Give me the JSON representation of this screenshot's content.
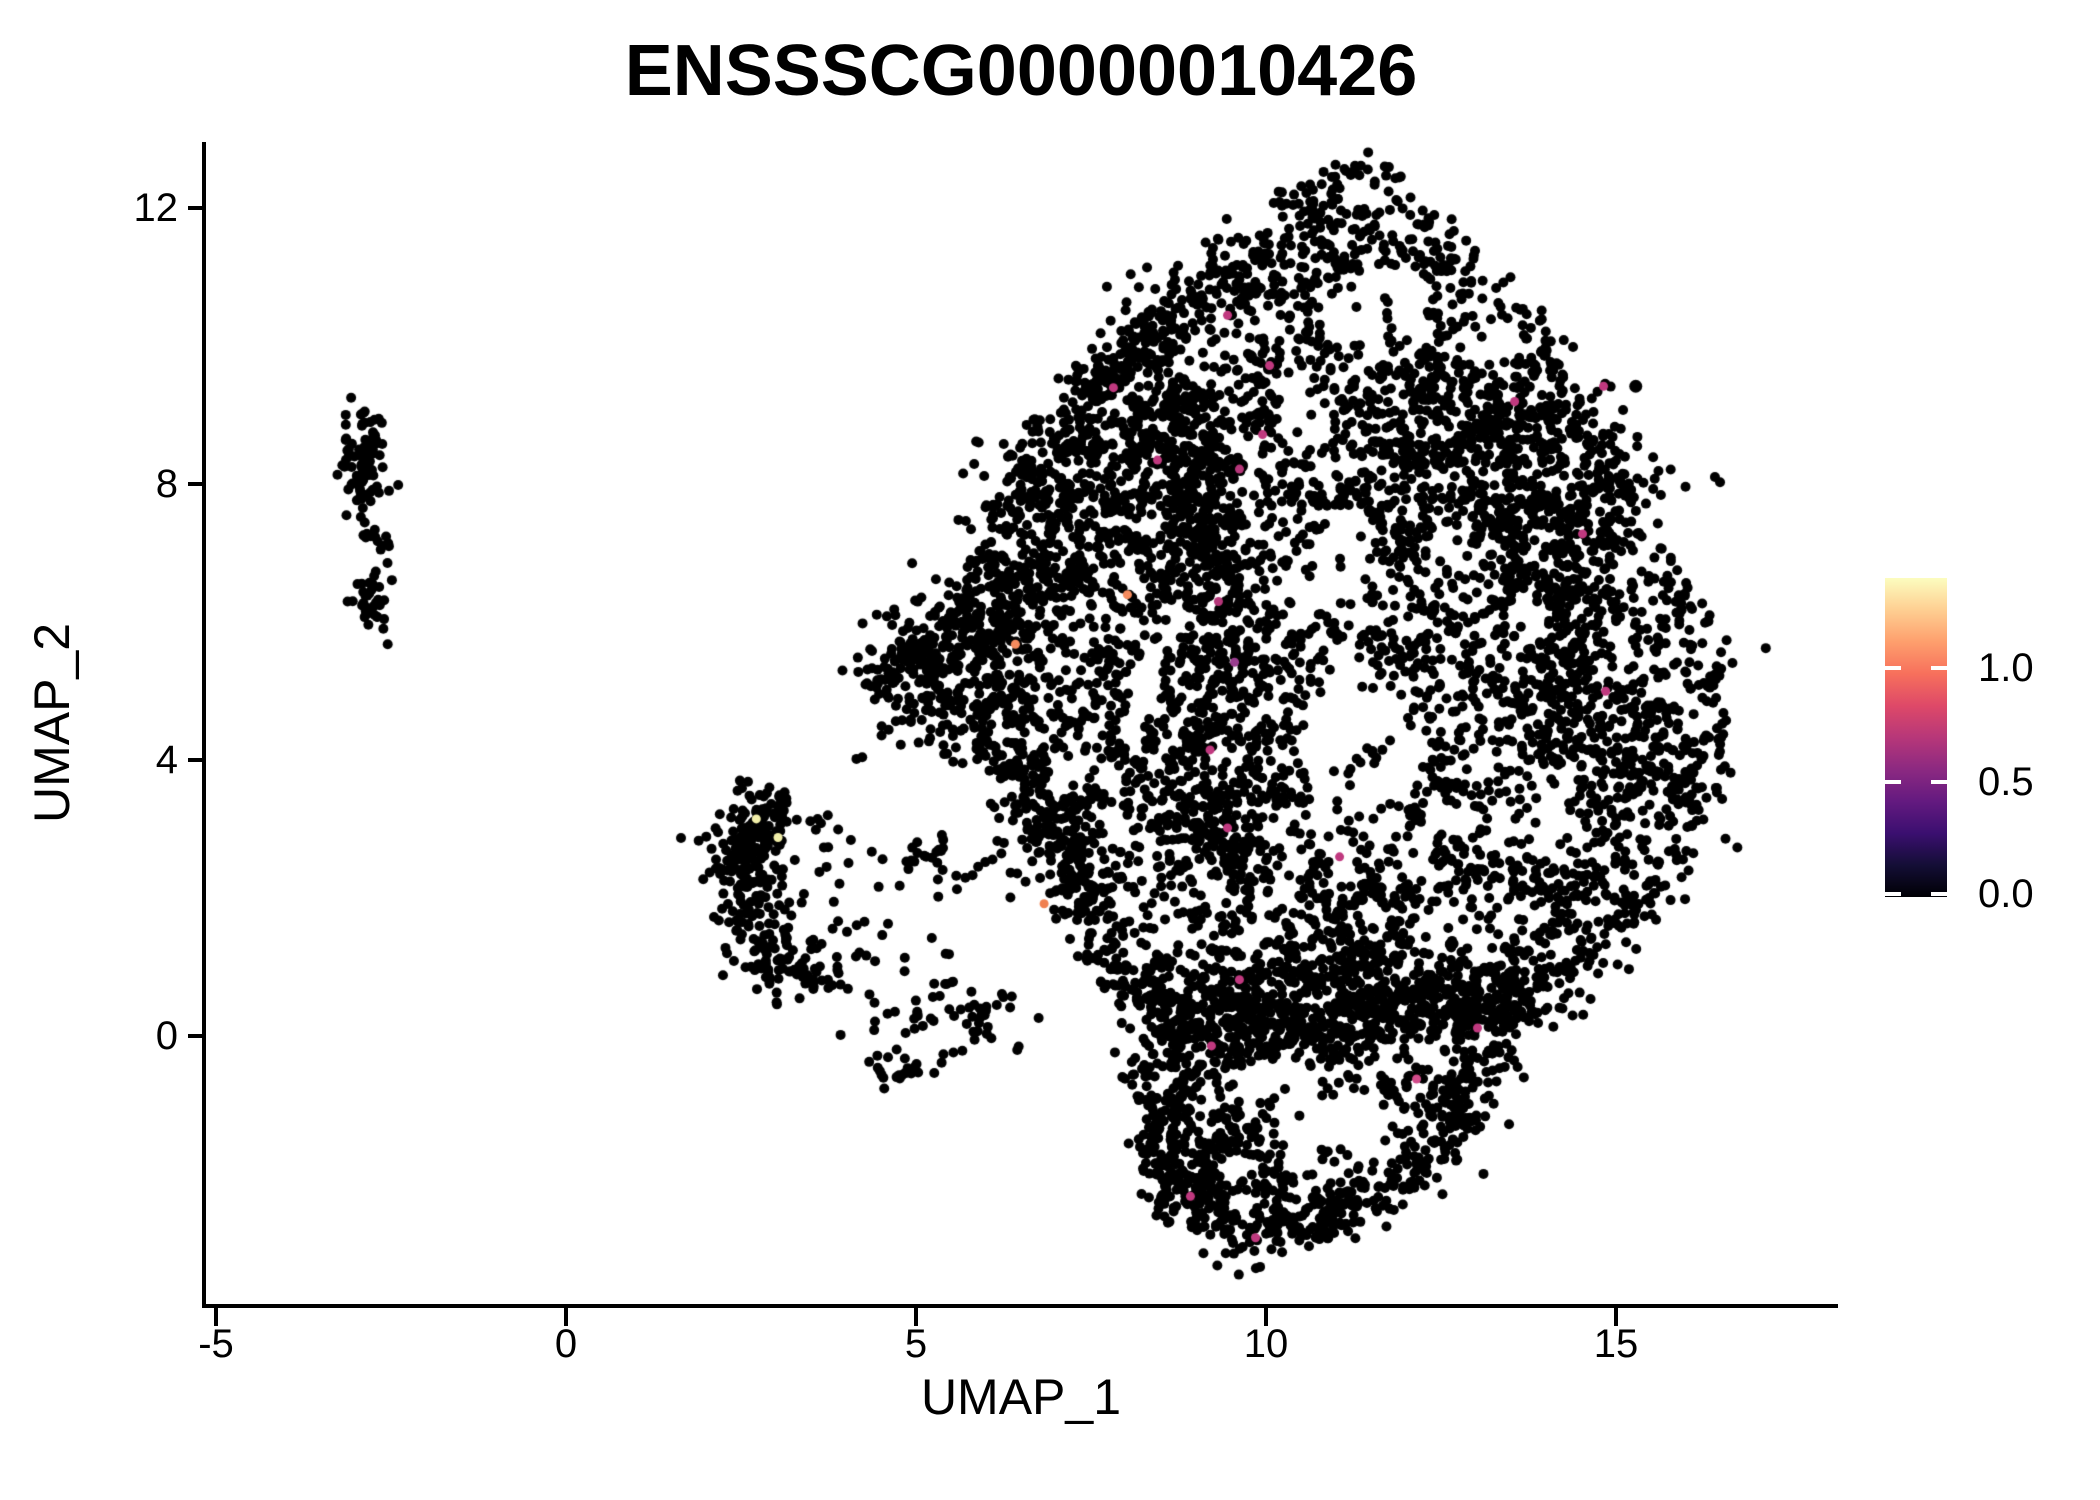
{
  "chart_data": {
    "type": "scatter",
    "title": "ENSSSCG00000010426",
    "xlabel": "UMAP_1",
    "ylabel": "UMAP_2",
    "x_ticks": [
      -5,
      0,
      5,
      10,
      15
    ],
    "y_ticks": [
      12,
      8,
      4,
      0
    ],
    "x_tick_labels": [
      "-5",
      "0",
      "5",
      "10",
      "15"
    ],
    "y_tick_labels": [
      "12",
      "8",
      "4",
      "0"
    ],
    "xlim": [
      -5.14,
      18.14
    ],
    "ylim": [
      -3.88,
      12.96
    ],
    "grid": false,
    "point_color": "#000000",
    "point_radius": 5,
    "highlight_radius": 4.5,
    "colorbar": {
      "position": "right",
      "tick_labels": [
        "1.0",
        "0.5",
        "0.0"
      ],
      "tick_values": [
        1.0,
        0.5,
        0.0
      ],
      "value_range": [
        0.0,
        1.4
      ],
      "palette": "magma",
      "stops": [
        [
          0,
          "#000004"
        ],
        [
          0.1,
          "#140e36"
        ],
        [
          0.2,
          "#3b0f70"
        ],
        [
          0.3,
          "#641a80"
        ],
        [
          0.4,
          "#8c2981"
        ],
        [
          0.5,
          "#b73779"
        ],
        [
          0.6,
          "#de4968"
        ],
        [
          0.7,
          "#f7705c"
        ],
        [
          0.8,
          "#fe9f6d"
        ],
        [
          0.9,
          "#fecf92"
        ],
        [
          1,
          "#fcfdbf"
        ]
      ]
    },
    "main_polygon": [
      [
        11.35,
        12.45
      ],
      [
        12.15,
        12.05
      ],
      [
        12.75,
        11.25
      ],
      [
        13.45,
        10.45
      ],
      [
        14.35,
        9.55
      ],
      [
        15.1,
        8.0
      ],
      [
        15.6,
        6.8
      ],
      [
        16.1,
        5.9
      ],
      [
        16.4,
        4.9
      ],
      [
        16.3,
        3.8
      ],
      [
        15.9,
        2.8
      ],
      [
        15.3,
        1.8
      ],
      [
        14.6,
        1.0
      ],
      [
        13.9,
        0.55
      ],
      [
        13.0,
        0.2
      ],
      [
        12.0,
        -0.05
      ],
      [
        11.0,
        -0.25
      ],
      [
        10.0,
        -0.3
      ],
      [
        9.2,
        -0.1
      ],
      [
        8.5,
        0.3
      ],
      [
        7.95,
        1.0
      ],
      [
        7.45,
        1.9
      ],
      [
        7.0,
        2.9
      ],
      [
        6.5,
        3.9
      ],
      [
        5.6,
        4.35
      ],
      [
        4.6,
        4.9
      ],
      [
        4.35,
        5.2
      ],
      [
        5.3,
        5.9
      ],
      [
        5.75,
        6.6
      ],
      [
        6.1,
        7.4
      ],
      [
        6.6,
        8.2
      ],
      [
        7.2,
        9.0
      ],
      [
        7.9,
        9.8
      ],
      [
        8.6,
        10.5
      ],
      [
        9.4,
        11.1
      ],
      [
        10.3,
        11.8
      ],
      [
        10.9,
        12.25
      ]
    ],
    "lobe_polygon": [
      [
        8.45,
        -0.15
      ],
      [
        8.1,
        -1.0
      ],
      [
        8.3,
        -1.8
      ],
      [
        8.8,
        -2.4
      ],
      [
        9.4,
        -2.85
      ],
      [
        10.0,
        -3.05
      ],
      [
        10.7,
        -2.85
      ],
      [
        11.5,
        -2.35
      ],
      [
        12.3,
        -1.8
      ],
      [
        12.95,
        -1.2
      ],
      [
        13.4,
        -0.55
      ],
      [
        13.55,
        -0.1
      ],
      [
        12.6,
        -0.35
      ],
      [
        11.6,
        -0.55
      ],
      [
        10.6,
        -0.65
      ],
      [
        9.7,
        -0.55
      ],
      [
        9.1,
        -0.35
      ]
    ],
    "clusters": [
      {
        "kind": "path",
        "closed": true,
        "w": 0.22,
        "n": 680,
        "use": "main_polygon"
      },
      {
        "kind": "poly",
        "n": 3550,
        "clump": 0.55,
        "use": "main_polygon",
        "holes": [
          [
            8.2,
            1.9,
            0.8
          ],
          [
            11.4,
            4.3,
            0.95
          ],
          [
            10.9,
            6.6,
            0.6
          ],
          [
            11.6,
            10.45,
            0.75
          ],
          [
            13.9,
            3.3,
            0.6
          ],
          [
            12.7,
            6.9,
            0.55
          ],
          [
            15.1,
            5.6,
            0.5
          ],
          [
            10.3,
            2.95,
            0.5
          ],
          [
            12.5,
            1.55,
            0.5
          ],
          [
            9.0,
            5.9,
            0.45
          ],
          [
            13.2,
            10.1,
            0.5
          ],
          [
            10.6,
            9.0,
            0.45
          ]
        ]
      },
      {
        "kind": "path",
        "w": 0.3,
        "n": 400,
        "pts": [
          [
            9.35,
            4.2
          ],
          [
            9.15,
            6.2
          ],
          [
            9.0,
            7.6
          ],
          [
            8.85,
            9.3
          ]
        ]
      },
      {
        "kind": "path",
        "w": 0.26,
        "n": 450,
        "pts": [
          [
            9.3,
            0.28
          ],
          [
            10.8,
            0.3
          ],
          [
            12.2,
            0.38
          ],
          [
            13.75,
            0.5
          ]
        ]
      },
      {
        "kind": "path",
        "w": 0.3,
        "n": 250,
        "pts": [
          [
            6.45,
            4.05
          ],
          [
            7.05,
            2.85
          ],
          [
            7.6,
            1.75
          ],
          [
            8.35,
            0.65
          ]
        ]
      },
      {
        "kind": "path",
        "w": 0.28,
        "n": 220,
        "pts": [
          [
            6.25,
            7.6
          ],
          [
            7.35,
            9.15
          ],
          [
            8.55,
            10.4
          ],
          [
            9.9,
            11.35
          ]
        ]
      },
      {
        "kind": "gauss",
        "cx": 5.65,
        "cy": 5.35,
        "sx": 0.65,
        "sy": 0.5,
        "n": 200
      },
      {
        "kind": "gauss",
        "cx": 6.35,
        "cy": 6.35,
        "sx": 0.5,
        "sy": 0.6,
        "n": 150
      },
      {
        "kind": "gauss",
        "cx": 13.6,
        "cy": 7.6,
        "sx": 1.0,
        "sy": 0.95,
        "n": 340
      },
      {
        "kind": "gauss",
        "cx": 14.55,
        "cy": 4.6,
        "sx": 0.8,
        "sy": 1.1,
        "n": 270
      },
      {
        "kind": "gauss",
        "cx": 12.4,
        "cy": 8.85,
        "sx": 0.85,
        "sy": 0.7,
        "n": 200
      },
      {
        "kind": "gauss",
        "cx": 8.1,
        "cy": 8.3,
        "sx": 0.7,
        "sy": 0.85,
        "n": 240
      },
      {
        "kind": "gauss",
        "cx": 9.35,
        "cy": 2.8,
        "sx": 0.6,
        "sy": 0.5,
        "n": 190
      },
      {
        "kind": "gauss",
        "cx": 11.5,
        "cy": 1.0,
        "sx": 1.2,
        "sy": 0.45,
        "n": 200
      },
      {
        "kind": "gauss",
        "cx": 8.8,
        "cy": 0.1,
        "sx": 0.4,
        "sy": 0.4,
        "n": 120
      },
      {
        "kind": "poly",
        "n": 480,
        "clump": 0.5,
        "use": "lobe_polygon",
        "holes": [
          [
            11.1,
            -1.5,
            0.9
          ],
          [
            10.2,
            -1.05,
            0.5
          ]
        ]
      },
      {
        "kind": "path",
        "w": 0.28,
        "n": 180,
        "pts": [
          [
            8.35,
            -1.1
          ],
          [
            8.9,
            -2.3
          ],
          [
            9.9,
            -2.95
          ]
        ]
      },
      {
        "kind": "path",
        "w": 0.25,
        "n": 150,
        "pts": [
          [
            13.3,
            -0.7
          ],
          [
            12.6,
            -1.5
          ],
          [
            11.6,
            -2.2
          ],
          [
            10.7,
            -2.7
          ]
        ]
      },
      {
        "kind": "gauss",
        "cx": 2.8,
        "cy": 3.05,
        "sx": 0.32,
        "sy": 0.28,
        "n": 110
      },
      {
        "kind": "gauss",
        "cx": 2.45,
        "cy": 2.3,
        "sx": 0.18,
        "sy": 0.38,
        "n": 70
      },
      {
        "kind": "gauss",
        "cx": 2.85,
        "cy": 1.45,
        "sx": 0.3,
        "sy": 0.35,
        "n": 85
      },
      {
        "kind": "gauss",
        "cx": 3.35,
        "cy": 0.9,
        "sx": 0.3,
        "sy": 0.2,
        "n": 40
      },
      {
        "kind": "path",
        "w": 0.3,
        "n": 50,
        "pts": [
          [
            3.3,
            2.6
          ],
          [
            4.5,
            2.45
          ],
          [
            5.5,
            2.6
          ],
          [
            6.4,
            2.35
          ]
        ]
      },
      {
        "kind": "gauss",
        "cx": 5.55,
        "cy": 0.3,
        "sx": 0.5,
        "sy": 0.25,
        "n": 55
      },
      {
        "kind": "gauss",
        "cx": 4.7,
        "cy": -0.5,
        "sx": 0.18,
        "sy": 0.15,
        "n": 22
      },
      {
        "kind": "box",
        "x0": 3.3,
        "x1": 5.7,
        "y0": 0.45,
        "y1": 1.7,
        "n": 26
      },
      {
        "kind": "gauss",
        "cx": -2.9,
        "cy": 8.35,
        "sx": 0.17,
        "sy": 0.38,
        "n": 85
      },
      {
        "kind": "gauss",
        "cx": -2.78,
        "cy": 7.2,
        "sx": 0.1,
        "sy": 0.22,
        "n": 13
      },
      {
        "kind": "gauss",
        "cx": -2.72,
        "cy": 6.35,
        "sx": 0.17,
        "sy": 0.22,
        "n": 42
      },
      {
        "kind": "points",
        "pts": [
          [
            4.15,
            4.02
          ],
          [
            3.95,
            5.3
          ],
          [
            6.12,
            3.32
          ]
        ]
      },
      {
        "kind": "points",
        "r": 6.5,
        "pts": [
          [
            15.28,
            9.42
          ]
        ]
      }
    ],
    "highlighted_cells": [
      {
        "x": 2.72,
        "y": 3.15,
        "c": "#f2efa9"
      },
      {
        "x": 3.03,
        "y": 2.88,
        "c": "#f2efa9"
      },
      {
        "x": 6.42,
        "y": 5.68,
        "c": "#f58b5e"
      },
      {
        "x": 8.02,
        "y": 6.4,
        "c": "#f58b5e"
      },
      {
        "x": 6.83,
        "y": 1.92,
        "c": "#f08050"
      },
      {
        "x": 7.82,
        "y": 9.4,
        "c": "#c0397f"
      },
      {
        "x": 8.45,
        "y": 8.35,
        "c": "#c0397f"
      },
      {
        "x": 9.62,
        "y": 8.22,
        "c": "#b53679"
      },
      {
        "x": 9.95,
        "y": 8.72,
        "c": "#c0397f"
      },
      {
        "x": 10.05,
        "y": 9.72,
        "c": "#c0397f"
      },
      {
        "x": 9.45,
        "y": 10.45,
        "c": "#c0397f"
      },
      {
        "x": 13.55,
        "y": 9.2,
        "c": "#c0397f"
      },
      {
        "x": 14.82,
        "y": 9.42,
        "c": "#c0397f"
      },
      {
        "x": 14.52,
        "y": 7.28,
        "c": "#c0397f"
      },
      {
        "x": 9.32,
        "y": 6.3,
        "c": "#b53679"
      },
      {
        "x": 9.55,
        "y": 5.42,
        "c": "#9a3d8f"
      },
      {
        "x": 9.2,
        "y": 4.15,
        "c": "#c0397f"
      },
      {
        "x": 9.45,
        "y": 3.02,
        "c": "#c0397f"
      },
      {
        "x": 11.05,
        "y": 2.6,
        "c": "#c0397f"
      },
      {
        "x": 14.85,
        "y": 5.0,
        "c": "#c0397f"
      },
      {
        "x": 9.62,
        "y": 0.82,
        "c": "#c0397f"
      },
      {
        "x": 9.22,
        "y": -0.14,
        "c": "#c0397f"
      },
      {
        "x": 13.02,
        "y": 0.12,
        "c": "#c0397f"
      },
      {
        "x": 12.15,
        "y": -0.62,
        "c": "#d24b8a"
      },
      {
        "x": 8.92,
        "y": -2.32,
        "c": "#c0397f"
      },
      {
        "x": 9.85,
        "y": -2.92,
        "c": "#c0397f"
      }
    ]
  }
}
